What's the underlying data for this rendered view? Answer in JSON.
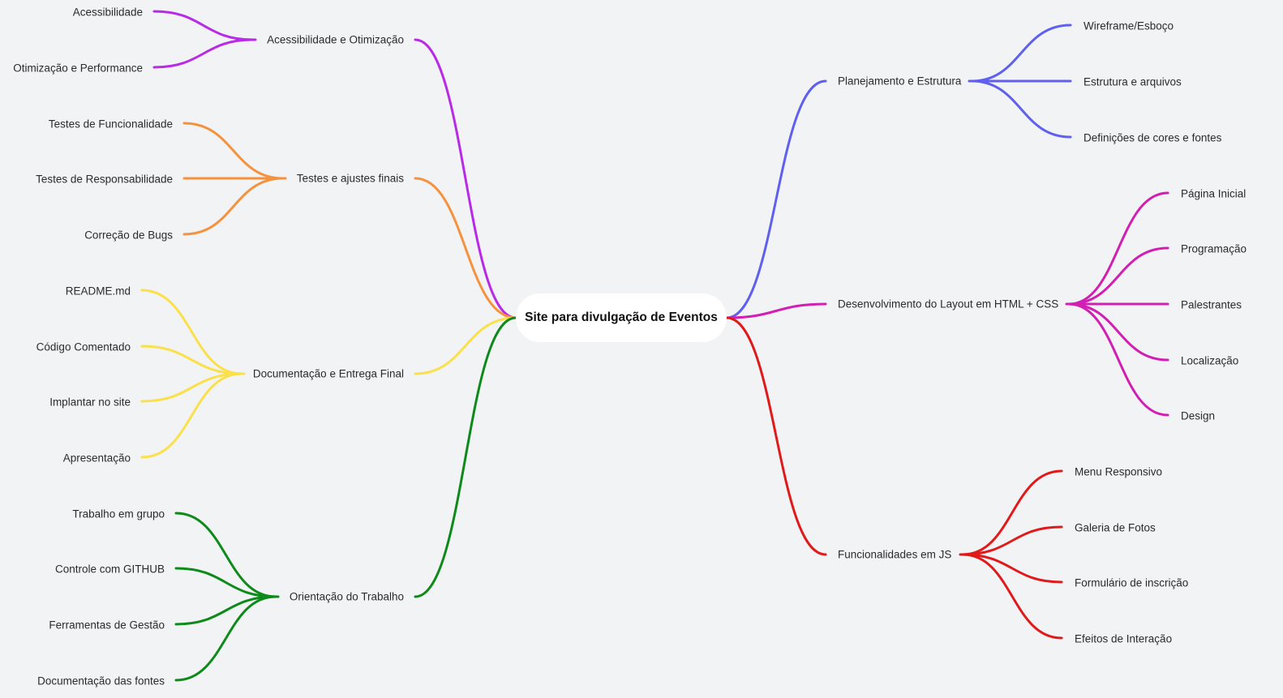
{
  "root": {
    "label": "Site para divulgação de Eventos"
  },
  "branches": [
    {
      "id": "acessibilidade-otimizacao",
      "label": "Acessibilidade e Otimização",
      "color": "#b92ae6",
      "children": [
        "Acessibilidade",
        "Otimização e Performance"
      ]
    },
    {
      "id": "testes-ajustes",
      "label": "Testes e ajustes finais",
      "color": "#f5923e",
      "children": [
        "Testes de Funcionalidade",
        "Testes de Responsabilidade",
        "Correção de Bugs"
      ]
    },
    {
      "id": "documentacao-entrega",
      "label": "Documentação e Entrega Final",
      "color": "#fae04a",
      "children": [
        "README.md",
        "Código Comentado",
        "Implantar no site",
        "Apresentação"
      ]
    },
    {
      "id": "orientacao-trabalho",
      "label": "Orientação do Trabalho",
      "color": "#0e8a1a",
      "children": [
        "Trabalho em grupo",
        "Controle com GITHUB",
        "Ferramentas de Gestão",
        "Documentação das fontes"
      ]
    },
    {
      "id": "planejamento-estrutura",
      "label": "Planejamento e Estrutura",
      "color": "#5f5ff0",
      "children": [
        "Wireframe/Esboço",
        "Estrutura e arquivos",
        "Definições de cores e fontes"
      ]
    },
    {
      "id": "desenvolvimento-layout",
      "label": "Desenvolvimento do Layout em HTML + CSS",
      "color": "#d11fb3",
      "children": [
        "Página Inicial",
        "Programação",
        "Palestrantes",
        "Localização",
        "Design"
      ]
    },
    {
      "id": "funcionalidades-js",
      "label": "Funcionalidades em JS",
      "color": "#e01a1a",
      "children": [
        "Menu Responsivo",
        "Galeria de Fotos",
        "Formulário de inscrição",
        "Efeitos de Interação"
      ]
    }
  ]
}
